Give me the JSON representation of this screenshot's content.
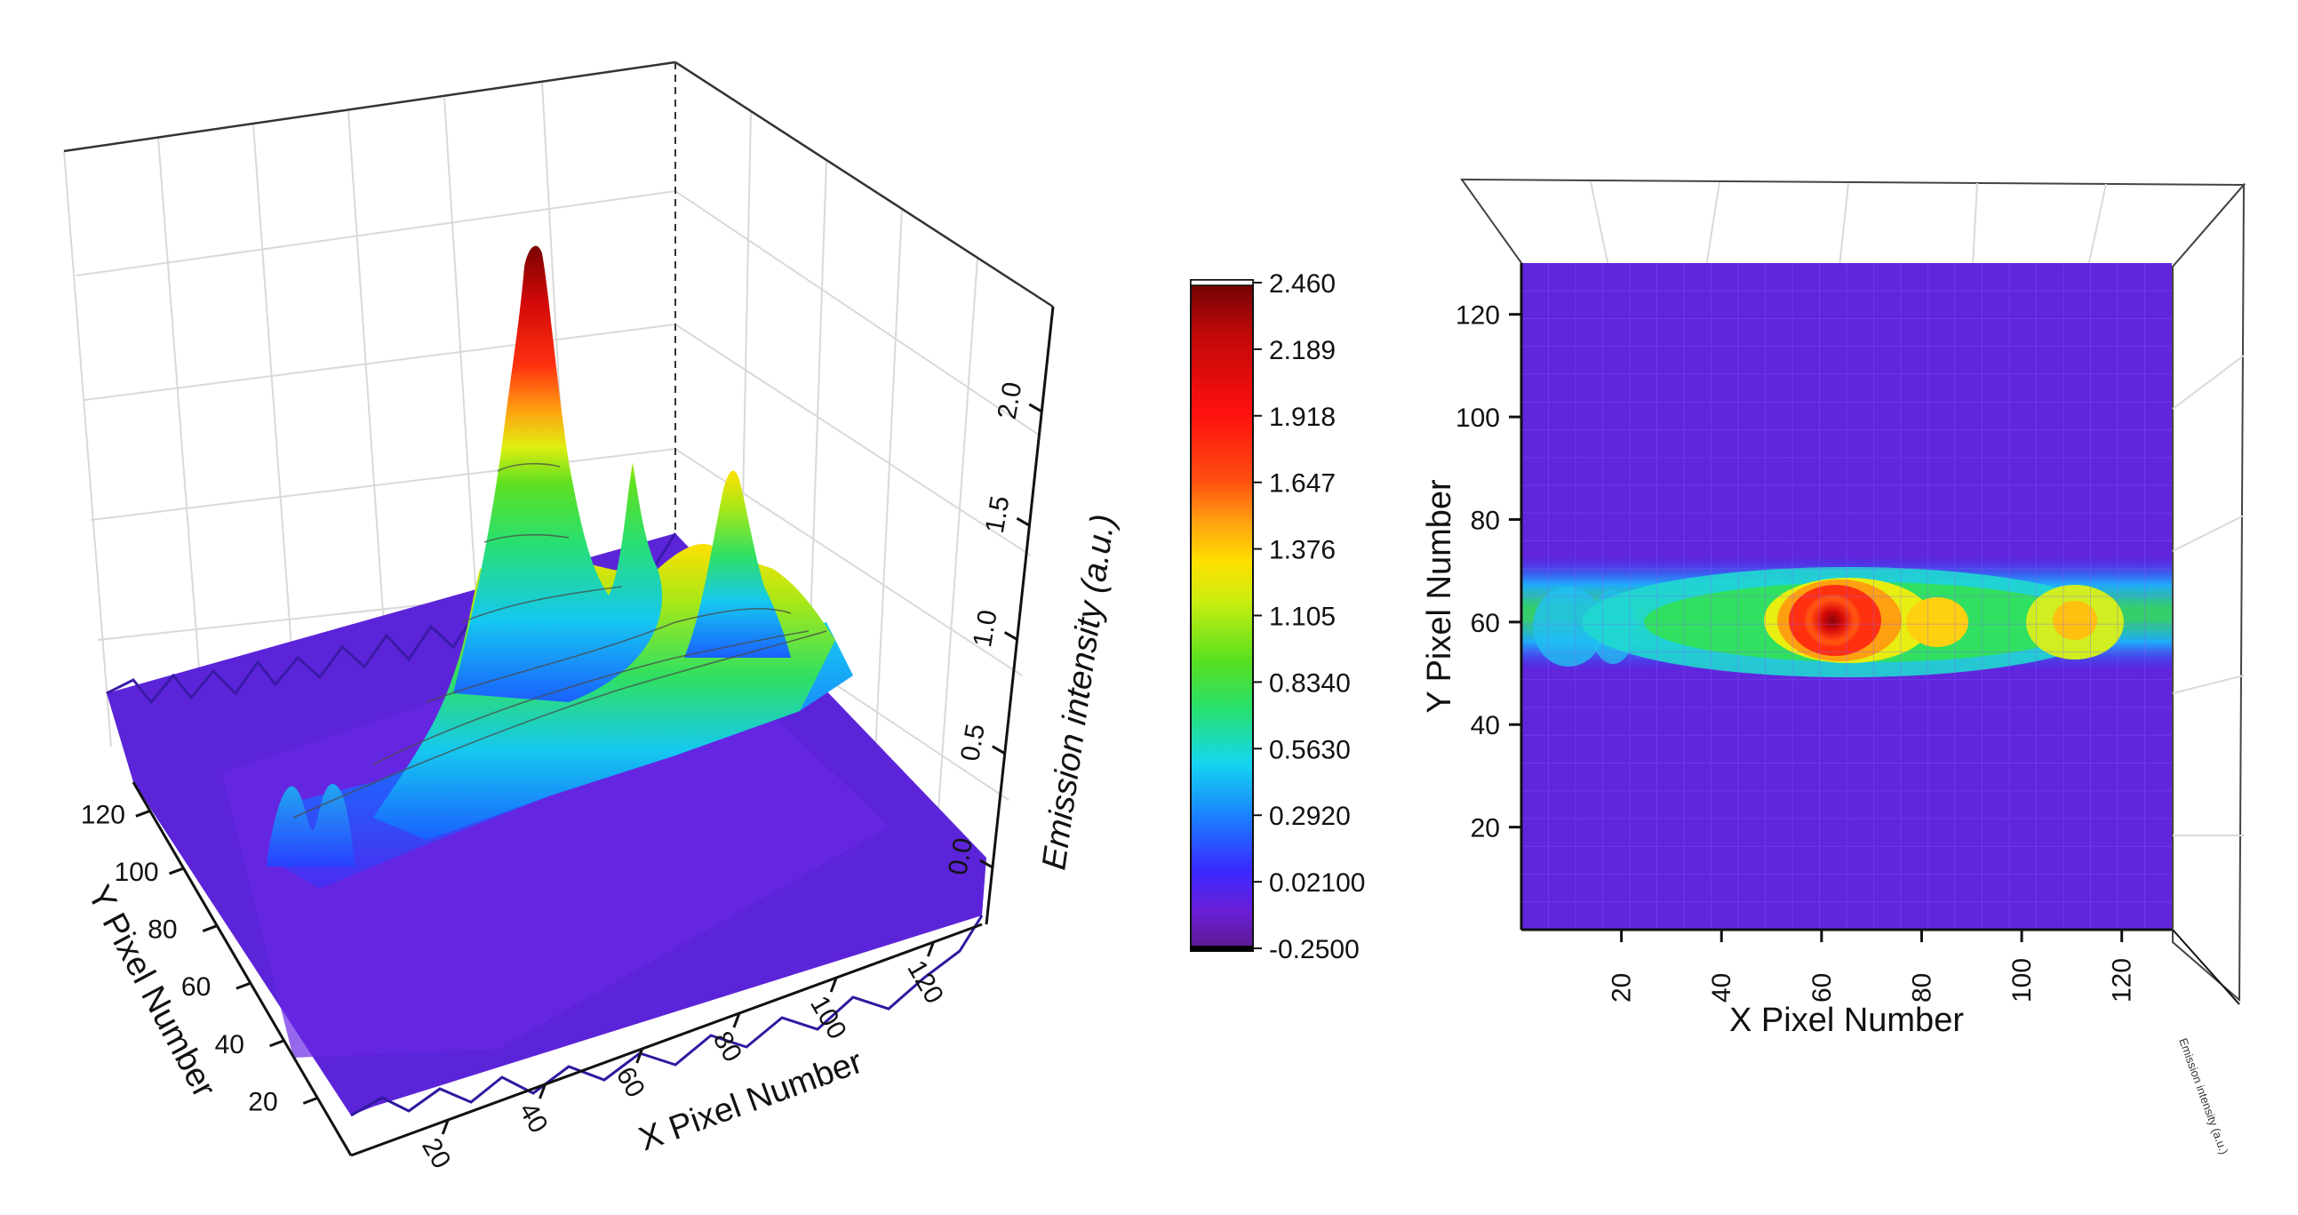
{
  "chart_data": [
    {
      "type": "surface3d",
      "title": "",
      "xlabel": "X Pixel Number",
      "ylabel": "Y Pixel Number",
      "zlabel": "Emission intensity (a.u.)",
      "xlim": [
        0,
        130
      ],
      "ylim": [
        0,
        130
      ],
      "zlim": [
        -0.25,
        2.46
      ],
      "x_ticks": [
        "20",
        "40",
        "60",
        "80",
        "100",
        "120"
      ],
      "y_ticks": [
        "20",
        "40",
        "60",
        "80",
        "100",
        "120"
      ],
      "z_ticks": [
        "0.0",
        "0.5",
        "1.0",
        "1.5",
        "2.0"
      ],
      "grid": true,
      "peaks": [
        {
          "x": 10,
          "y": 60,
          "z": 0.55
        },
        {
          "x": 20,
          "y": 60,
          "z": 0.55
        },
        {
          "x": 66,
          "y": 60,
          "z": 2.46
        },
        {
          "x": 80,
          "y": 60,
          "z": 1.25
        },
        {
          "x": 88,
          "y": 60,
          "z": 1.1
        },
        {
          "x": 118,
          "y": 60,
          "z": 1.35
        }
      ]
    },
    {
      "type": "heatmap",
      "title": "",
      "xlabel": "X Pixel Number",
      "ylabel": "Y Pixel Number",
      "xlim": [
        0,
        130
      ],
      "ylim": [
        0,
        130
      ],
      "x_ticks": [
        "20",
        "40",
        "60",
        "80",
        "100",
        "120"
      ],
      "y_ticks": [
        "20",
        "40",
        "60",
        "80",
        "100",
        "120"
      ],
      "grid": true,
      "side_axis_label": "Emission intensity (a.u.)"
    }
  ],
  "colorbar": {
    "labels": [
      "2.460",
      "2.189",
      "1.918",
      "1.647",
      "1.376",
      "1.105",
      "0.8340",
      "0.5630",
      "0.2920",
      "0.02100",
      "-0.2500"
    ],
    "min": -0.25,
    "max": 2.46,
    "colors": [
      "#5a1a8c",
      "#6a1fd8",
      "#3a28ff",
      "#1a80ff",
      "#15d6f0",
      "#28e070",
      "#55e020",
      "#c8ee10",
      "#ffe000",
      "#ffa010",
      "#ff5010",
      "#ff1010",
      "#c00808",
      "#6a0202"
    ]
  }
}
